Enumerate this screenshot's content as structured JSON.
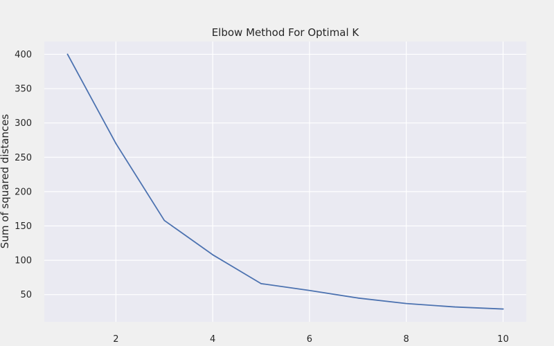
{
  "chart_data": {
    "type": "line",
    "title": "Elbow Method For Optimal K",
    "xlabel": "",
    "ylabel": "Sum of squared distances",
    "x": [
      1,
      2,
      3,
      4,
      5,
      6,
      7,
      8,
      9,
      10
    ],
    "series": [
      {
        "values": [
          400,
          270,
          158,
          108,
          66,
          56,
          45,
          37,
          32,
          29
        ],
        "color": "#4c72b0"
      }
    ],
    "xlim": [
      0.52,
      10.48
    ],
    "ylim": [
      10.4,
      418.6
    ],
    "xticks": [
      2,
      4,
      6,
      8,
      10
    ],
    "yticks": [
      50,
      100,
      150,
      200,
      250,
      300,
      350,
      400
    ],
    "grid": true,
    "legend": "none",
    "background_color": "#eaeaf2",
    "figure_color": "#f0f0f0",
    "grid_color": "#ffffff"
  }
}
